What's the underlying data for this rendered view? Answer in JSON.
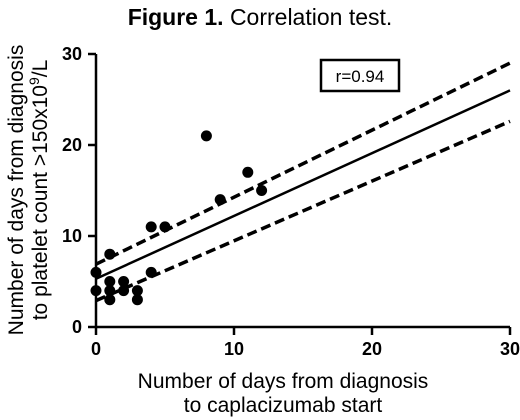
{
  "title": {
    "label": "Figure 1.",
    "text": "Correlation test."
  },
  "chart_data": {
    "type": "scatter",
    "xlabel_lines": [
      "Number of days from diagnosis",
      "to caplacizumab start"
    ],
    "ylabel_lines": [
      "Number of days from diagnosis",
      "to platelet count >150x10",
      "9",
      "/L"
    ],
    "xlim": [
      0,
      30
    ],
    "ylim": [
      0,
      30
    ],
    "xticks": [
      0,
      10,
      20,
      30
    ],
    "yticks": [
      0,
      10,
      20,
      30
    ],
    "grid": false,
    "annotation": "r=0.94",
    "points": [
      {
        "x": 0,
        "y": 6
      },
      {
        "x": 0,
        "y": 4
      },
      {
        "x": 1,
        "y": 8
      },
      {
        "x": 1,
        "y": 5
      },
      {
        "x": 1,
        "y": 4
      },
      {
        "x": 1,
        "y": 3
      },
      {
        "x": 2,
        "y": 5
      },
      {
        "x": 2,
        "y": 4
      },
      {
        "x": 3,
        "y": 4
      },
      {
        "x": 3,
        "y": 3
      },
      {
        "x": 4,
        "y": 11
      },
      {
        "x": 4,
        "y": 6
      },
      {
        "x": 5,
        "y": 11
      },
      {
        "x": 8,
        "y": 21
      },
      {
        "x": 9,
        "y": 14
      },
      {
        "x": 11,
        "y": 17
      },
      {
        "x": 12,
        "y": 15
      }
    ],
    "regression_line": {
      "x0": 0,
      "y0": 5.3,
      "x1": 30,
      "y1": 26
    },
    "confidence_upper": {
      "x0": 0,
      "y0": 6.9,
      "x1": 30,
      "y1": 29
    },
    "confidence_lower": {
      "x0": 0,
      "y0": 2.9,
      "x1": 30,
      "y1": 22.6
    }
  }
}
